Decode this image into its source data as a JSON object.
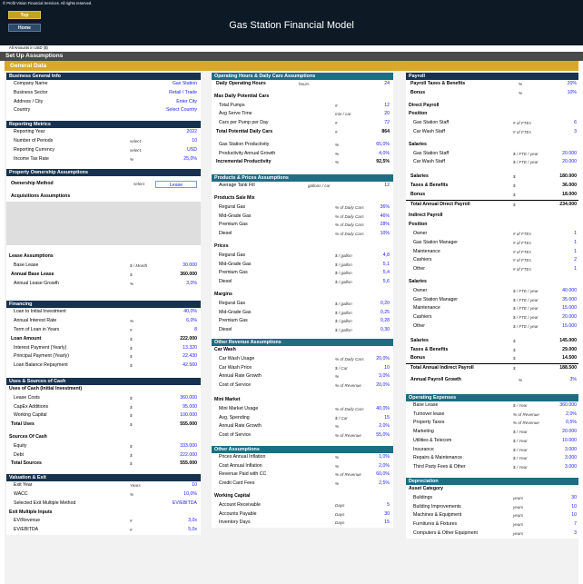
{
  "header": {
    "copyright": "© Profit Vision Financial Services. All rights reserved.",
    "title": "Gas Station Financial Model",
    "top_button": "Top",
    "home_button": "Home",
    "amounts_note": "All Amounts in USD ($)"
  },
  "section_bar": "Set Up Assumptions",
  "general_bar": "General Data",
  "business": {
    "title": "Business General Info",
    "rows": [
      {
        "label": "Company Name",
        "value": "Gas Station"
      },
      {
        "label": "Business Sector",
        "value": "Retail / Trade"
      },
      {
        "label": "Address / City",
        "value": "Enter City"
      },
      {
        "label": "Country",
        "value": "Select Country"
      }
    ]
  },
  "reporting": {
    "title": "Reporting Metrics",
    "rows": [
      {
        "label": "Reporting Year",
        "unit": "",
        "value": "2022"
      },
      {
        "label": "Number of Periods",
        "unit": "select",
        "value": "10"
      },
      {
        "label": "Reporting Currency",
        "unit": "select",
        "value": "USD"
      },
      {
        "label": "Income Tax Rate",
        "unit": "%",
        "value": "25,0%"
      }
    ]
  },
  "ownership": {
    "title": "Property Ownership Assumptions",
    "method_label": "Ownership Method",
    "method_unit": "select",
    "method_value": "Lease",
    "acq_label": "Acquisitions Assumptions"
  },
  "lease": {
    "title": "Lease Assumptions",
    "rows": [
      {
        "label": "Base Lease",
        "unit": "$ / Month",
        "value": "30.000"
      },
      {
        "label": "Annual Base Lease",
        "unit": "$",
        "value": "360.000"
      },
      {
        "label": "Annual Lease Growth",
        "unit": "%",
        "value": "3,0%"
      }
    ]
  },
  "financing": {
    "title": "Financing",
    "rows": [
      {
        "label": "Loan to Initial Investment",
        "unit": "",
        "value": "40,0%"
      },
      {
        "label": "Annual Interest Rate",
        "unit": "%",
        "value": "6,0%"
      },
      {
        "label": "Term of Loan in Years",
        "unit": "#",
        "value": "8"
      },
      {
        "label": "Loan Amount",
        "unit": "$",
        "value": "222.000"
      },
      {
        "label": "Interest Payment (Yearly)",
        "unit": "$",
        "value": "13.320"
      },
      {
        "label": "Principal Payment (Yearly)",
        "unit": "$",
        "value": "22.430"
      },
      {
        "label": "Loan Balance Repayment",
        "unit": "$",
        "value": "42.560"
      }
    ]
  },
  "uses": {
    "title": "Uses & Sources of Cash",
    "uses_title": "Uses of Cash (Initial Investment)",
    "uses_rows": [
      {
        "label": "Lease Costs",
        "unit": "$",
        "value": "360.000"
      },
      {
        "label": "CapEx Additions",
        "unit": "$",
        "value": "95.000"
      },
      {
        "label": "Working Capital",
        "unit": "$",
        "value": "100.000"
      },
      {
        "label": "Total Uses",
        "unit": "$",
        "value": "555.000"
      }
    ],
    "sources_title": "Sources Of Cash",
    "sources_rows": [
      {
        "label": "Equity",
        "unit": "$",
        "value": "333.000"
      },
      {
        "label": "Debt",
        "unit": "$",
        "value": "222.000"
      },
      {
        "label": "Total Sources",
        "unit": "$",
        "value": "555.000"
      }
    ]
  },
  "valuation": {
    "title": "Valuation & Exit",
    "rows": [
      {
        "label": "Exit Year",
        "unit": "Years",
        "value": "10"
      },
      {
        "label": "WACC",
        "unit": "%",
        "value": "10,0%"
      },
      {
        "label": "Selected Exit Multiple Method",
        "unit": "",
        "value": "EV/EBITDA"
      }
    ],
    "multiples_title": "Exit Multiple Inputs",
    "multiples": [
      {
        "label": "EV/Revenue",
        "unit": "#",
        "value": "3,0x"
      },
      {
        "label": "EV/EBITDA",
        "unit": "#",
        "value": "5,0x"
      }
    ]
  },
  "operating": {
    "title": "Operating Hours & Daily Cars Assumptions",
    "hours_label": "Daily Operating Hours",
    "hours_unit": "hours",
    "hours_value": "24",
    "max_title": "Max Daily Potential Cars",
    "rows": [
      {
        "label": "Total Pumps",
        "unit": "#",
        "value": "12"
      },
      {
        "label": "Avg Serve Time",
        "unit": "min / car",
        "value": "20"
      },
      {
        "label": "Cars per Pump per Day",
        "unit": "#",
        "value": "72"
      },
      {
        "label": "Total Potential Daily Cars",
        "unit": "#",
        "value": "864"
      }
    ],
    "prod_rows": [
      {
        "label": "Gas Station Productivity",
        "unit": "%",
        "value": "65,0%"
      },
      {
        "label": "Productivity Annual Growth",
        "unit": "%",
        "value": "4,0%"
      },
      {
        "label": "Incremental Productivity",
        "unit": "%",
        "value": "92,5%"
      }
    ]
  },
  "products": {
    "title": "Products & Prices Assumptions",
    "tank_label": "Average Tank Fill",
    "tank_unit": "gallons / car",
    "tank_value": "12",
    "mix_title": "Products Sale Mix",
    "mix": [
      {
        "label": "Regural Gas",
        "unit": "% of Daily Cars",
        "value": "36%"
      },
      {
        "label": "Mid-Grade Gas",
        "unit": "% of Daily Cars",
        "value": "46%"
      },
      {
        "label": "Premium Gas",
        "unit": "% of Daily Cars",
        "value": "28%"
      },
      {
        "label": "Diesel",
        "unit": "% of Daily Cars",
        "value": "10%"
      }
    ],
    "prices_title": "Prices",
    "prices": [
      {
        "label": "Regural Gas",
        "unit": "$ / gallon",
        "value": "4,8"
      },
      {
        "label": "Mid-Grade Gas",
        "unit": "$ / gallon",
        "value": "5,1"
      },
      {
        "label": "Premium Gas",
        "unit": "$ / gallon",
        "value": "5,4"
      },
      {
        "label": "Diesel",
        "unit": "$ / gallon",
        "value": "5,6"
      }
    ],
    "margins_title": "Margins",
    "margins": [
      {
        "label": "Regural Gas",
        "unit": "$ / gallon",
        "value": "0,20"
      },
      {
        "label": "Mid-Grade Gas",
        "unit": "$ / gallon",
        "value": "0,25"
      },
      {
        "label": "Premium Gas",
        "unit": "$ / gallon",
        "value": "0,28"
      },
      {
        "label": "Diesel",
        "unit": "$ / gallon",
        "value": "0,30"
      }
    ]
  },
  "other_rev": {
    "title": "Other Revenue Assumptions",
    "carwash_title": "Car Wash",
    "carwash": [
      {
        "label": "Car Wash Usage",
        "unit": "% of Daily Cars",
        "value": "20,0%"
      },
      {
        "label": "Car Wash Price",
        "unit": "$ / Car",
        "value": "10"
      },
      {
        "label": "Annual Rate Growth",
        "unit": "%",
        "value": "3,0%"
      },
      {
        "label": "Cost of Service",
        "unit": "% of Revenue",
        "value": "20,0%"
      }
    ],
    "mart_title": "Mini Market",
    "mart": [
      {
        "label": "Mini Market Usage",
        "unit": "% of Daily Cars",
        "value": "40,0%"
      },
      {
        "label": "Avg. Spending",
        "unit": "$ / Car",
        "value": "15"
      },
      {
        "label": "Annual Rate Growth",
        "unit": "%",
        "value": "2,0%"
      },
      {
        "label": "Cost of Service",
        "unit": "% of Revenue",
        "value": "55,0%"
      }
    ]
  },
  "other_assump": {
    "title": "Other Assumptions",
    "rows": [
      {
        "label": "Prices Annual Inflation",
        "unit": "%",
        "value": "1,0%"
      },
      {
        "label": "Cost Annual Inflation",
        "unit": "%",
        "value": "2,0%"
      },
      {
        "label": "Revenue Paid with CC",
        "unit": "% of Revenue",
        "value": "60,0%"
      },
      {
        "label": "Credit Card Fees",
        "unit": "%",
        "value": "2,5%"
      }
    ],
    "wc_title": "Working Capital",
    "wc": [
      {
        "label": "Account Receivable",
        "unit": "Days",
        "value": "5"
      },
      {
        "label": "Accounts Payable",
        "unit": "Days",
        "value": "30"
      },
      {
        "label": "Inventory Days",
        "unit": "Days",
        "value": "15"
      }
    ]
  },
  "payroll": {
    "title": "Payroll",
    "taxes_label": "Payroll Taxes & Benefits",
    "taxes_unit": "%",
    "taxes_value": "20%",
    "bonus_label": "Bonus",
    "bonus_unit": "%",
    "bonus_value": "10%",
    "direct_title": "Direct Payroll",
    "position_title": "Position",
    "direct_pos": [
      {
        "label": "Gas Station Staff",
        "unit": "# of FTEs",
        "value": "6"
      },
      {
        "label": "Car Wash Staff",
        "unit": "# of FTEs",
        "value": "3"
      }
    ],
    "salaries_title": "Salaries",
    "direct_sal": [
      {
        "label": "Gas Station Staff",
        "unit": "$ / FTE / year",
        "value": "20.000"
      },
      {
        "label": "Car Wash Staff",
        "unit": "$ / FTE / year",
        "value": "20.000"
      }
    ],
    "direct_totals": [
      {
        "label": "Salaries",
        "unit": "$",
        "value": "180.000"
      },
      {
        "label": "Taxes & Benefits",
        "unit": "$",
        "value": "36.000"
      },
      {
        "label": "Bonus",
        "unit": "$",
        "value": "18.000"
      },
      {
        "label": "Total Annual Direct Payroll",
        "unit": "$",
        "value": "234.000"
      }
    ],
    "indirect_title": "Indirect Payroll",
    "indirect_pos": [
      {
        "label": "Owner",
        "unit": "# of FTEs",
        "value": "1"
      },
      {
        "label": "Gas Station Manager",
        "unit": "# of FTEs",
        "value": "1"
      },
      {
        "label": "Maintenance",
        "unit": "# of FTEs",
        "value": "1"
      },
      {
        "label": "Cashiers",
        "unit": "# of FTEs",
        "value": "2"
      },
      {
        "label": "Other",
        "unit": "# of FTEs",
        "value": "1"
      }
    ],
    "indirect_sal": [
      {
        "label": "Owner",
        "unit": "$ / FTE / year",
        "value": "40.000"
      },
      {
        "label": "Gas Station Manager",
        "unit": "$ / FTE / year",
        "value": "35.000"
      },
      {
        "label": "Maintenance",
        "unit": "$ / FTE / year",
        "value": "15.000"
      },
      {
        "label": "Cashiers",
        "unit": "$ / FTE / year",
        "value": "20.000"
      },
      {
        "label": "Other",
        "unit": "$ / FTE / year",
        "value": "15.000"
      }
    ],
    "indirect_totals": [
      {
        "label": "Salaries",
        "unit": "$",
        "value": "145.000"
      },
      {
        "label": "Taxes & Benefits",
        "unit": "$",
        "value": "29.000"
      },
      {
        "label": "Bonus",
        "unit": "$",
        "value": "14.500"
      },
      {
        "label": "Total Annual Indirect Payroll",
        "unit": "$",
        "value": "188.500"
      }
    ],
    "growth_label": "Annual Payroll Growth",
    "growth_unit": "%",
    "growth_value": "3%"
  },
  "opex": {
    "title": "Operating Expenses",
    "rows": [
      {
        "label": "Base Lease",
        "unit": "$ / Year",
        "value": "360.000"
      },
      {
        "label": "Turnover lease",
        "unit": "% of Revenue",
        "value": "2,0%"
      },
      {
        "label": "Property Taxes",
        "unit": "% of Revenue",
        "value": "0,5%"
      },
      {
        "label": "Marketing",
        "unit": "$ / Year",
        "value": "20.000"
      },
      {
        "label": "Utilities & Telecom",
        "unit": "$ / Year",
        "value": "10.000"
      },
      {
        "label": "Insurance",
        "unit": "$ / Year",
        "value": "3.000"
      },
      {
        "label": "Repairs & Maintenance",
        "unit": "$ / Year",
        "value": "3.000"
      },
      {
        "label": "Third Party Fees & Other",
        "unit": "$ / Year",
        "value": "3.000"
      }
    ]
  },
  "depreciation": {
    "title": "Depreciation",
    "cat_title": "Asset Category",
    "rows": [
      {
        "label": "Buildings",
        "unit": "years",
        "value": "30"
      },
      {
        "label": "Building Improvements",
        "unit": "years",
        "value": "10"
      },
      {
        "label": "Machines & Equipment",
        "unit": "years",
        "value": "10"
      },
      {
        "label": "Furnitures & Fixtures",
        "unit": "years",
        "value": "7"
      },
      {
        "label": "Computers & Other Equipment",
        "unit": "years",
        "value": "3"
      }
    ]
  }
}
